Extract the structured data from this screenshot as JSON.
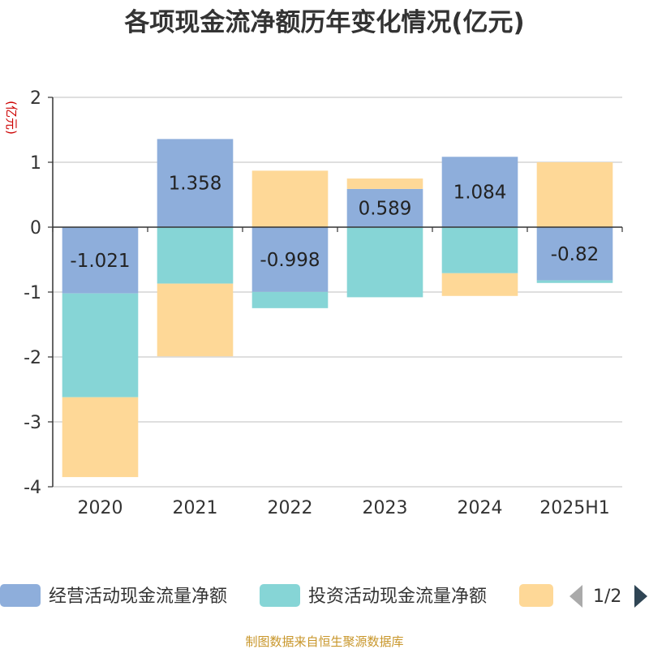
{
  "chart_data": {
    "type": "bar",
    "stacked": true,
    "title": "各项现金流净额历年变化情况(亿元)",
    "ylabel": "(亿元)",
    "ylim": [
      -4,
      2
    ],
    "yticks": [
      2,
      1,
      0,
      -1,
      -2,
      -3,
      -4
    ],
    "grid": true,
    "legend_position": "bottom",
    "categories": [
      "2020",
      "2021",
      "2022",
      "2023",
      "2024",
      "2025H1"
    ],
    "series": [
      {
        "name": "经营活动现金流量净额",
        "color": "#8eaedb",
        "values": [
          -1.021,
          1.358,
          -0.998,
          0.589,
          1.084,
          -0.82
        ],
        "labels": [
          "-1.021",
          "1.358",
          "-0.998",
          "0.589",
          "1.084",
          "-0.82"
        ]
      },
      {
        "name": "投资活动现金流量净额",
        "color": "#86d5d6",
        "values": [
          -1.6,
          -0.87,
          -0.25,
          -1.08,
          -0.71,
          -0.04
        ]
      },
      {
        "name": "",
        "color": "#fed897",
        "values": [
          -1.23,
          -1.12,
          0.87,
          0.16,
          -0.35,
          1.0
        ]
      }
    ]
  },
  "legend": {
    "page": "1/2",
    "items": [
      {
        "label": "经营活动现金流量净额",
        "color": "#8eaedb"
      },
      {
        "label": "投资活动现金流量净额",
        "color": "#86d5d6"
      },
      {
        "label": "",
        "color": "#fed897"
      }
    ]
  },
  "footer": "制图数据来自恒生聚源数据库"
}
